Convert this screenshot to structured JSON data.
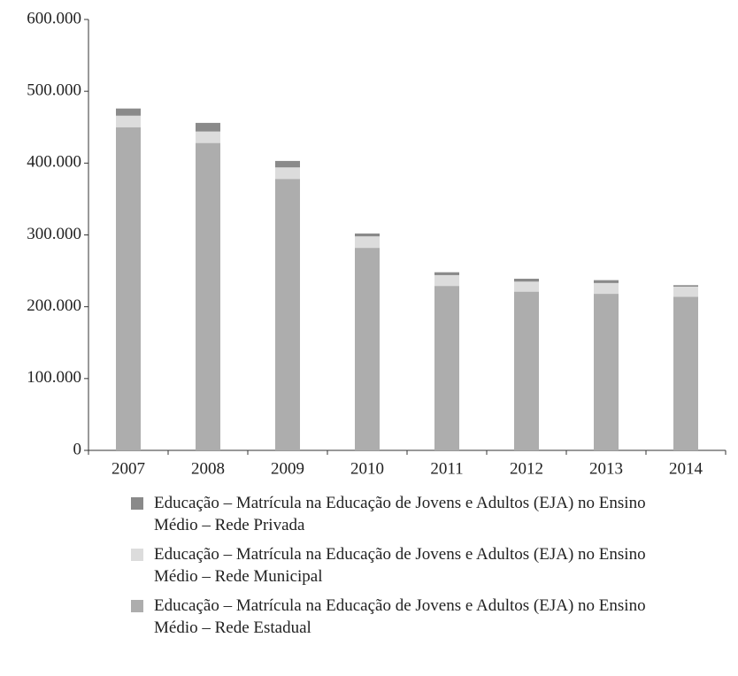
{
  "chart_data": {
    "type": "bar",
    "stacked": true,
    "categories": [
      "2007",
      "2008",
      "2009",
      "2010",
      "2011",
      "2012",
      "2013",
      "2014"
    ],
    "series": [
      {
        "name": "Educação – Matrícula na Educação de Jovens e Adultos (EJA) no Ensino Médio – Rede Estadual",
        "color": "#adadad",
        "values": [
          450000,
          428000,
          378000,
          282000,
          229000,
          221000,
          218000,
          214000
        ]
      },
      {
        "name": "Educação – Matrícula na Educação de Jovens e Adultos (EJA) no Ensino Médio – Rede Municipal",
        "color": "#dcdcdc",
        "values": [
          16000,
          16000,
          16000,
          16000,
          15000,
          14000,
          15000,
          14000
        ]
      },
      {
        "name": "Educação – Matrícula na Educação de Jovens e Adultos (EJA) no Ensino Médio – Rede Privada",
        "color": "#8a8a8a",
        "values": [
          10000,
          12000,
          9000,
          4000,
          4000,
          4000,
          4000,
          2000
        ]
      }
    ],
    "ylim": [
      0,
      600000
    ],
    "yticks": [
      0,
      {
        "value": 100000,
        "label": "100.000"
      },
      {
        "value": 200000,
        "label": "200.000"
      },
      {
        "value": 300000,
        "label": "300.000"
      },
      {
        "value": 400000,
        "label": "400.000"
      },
      {
        "value": 500000,
        "label": "500.000"
      },
      {
        "value": 600000,
        "label": "600.000"
      }
    ],
    "legend_order": "reversed"
  }
}
